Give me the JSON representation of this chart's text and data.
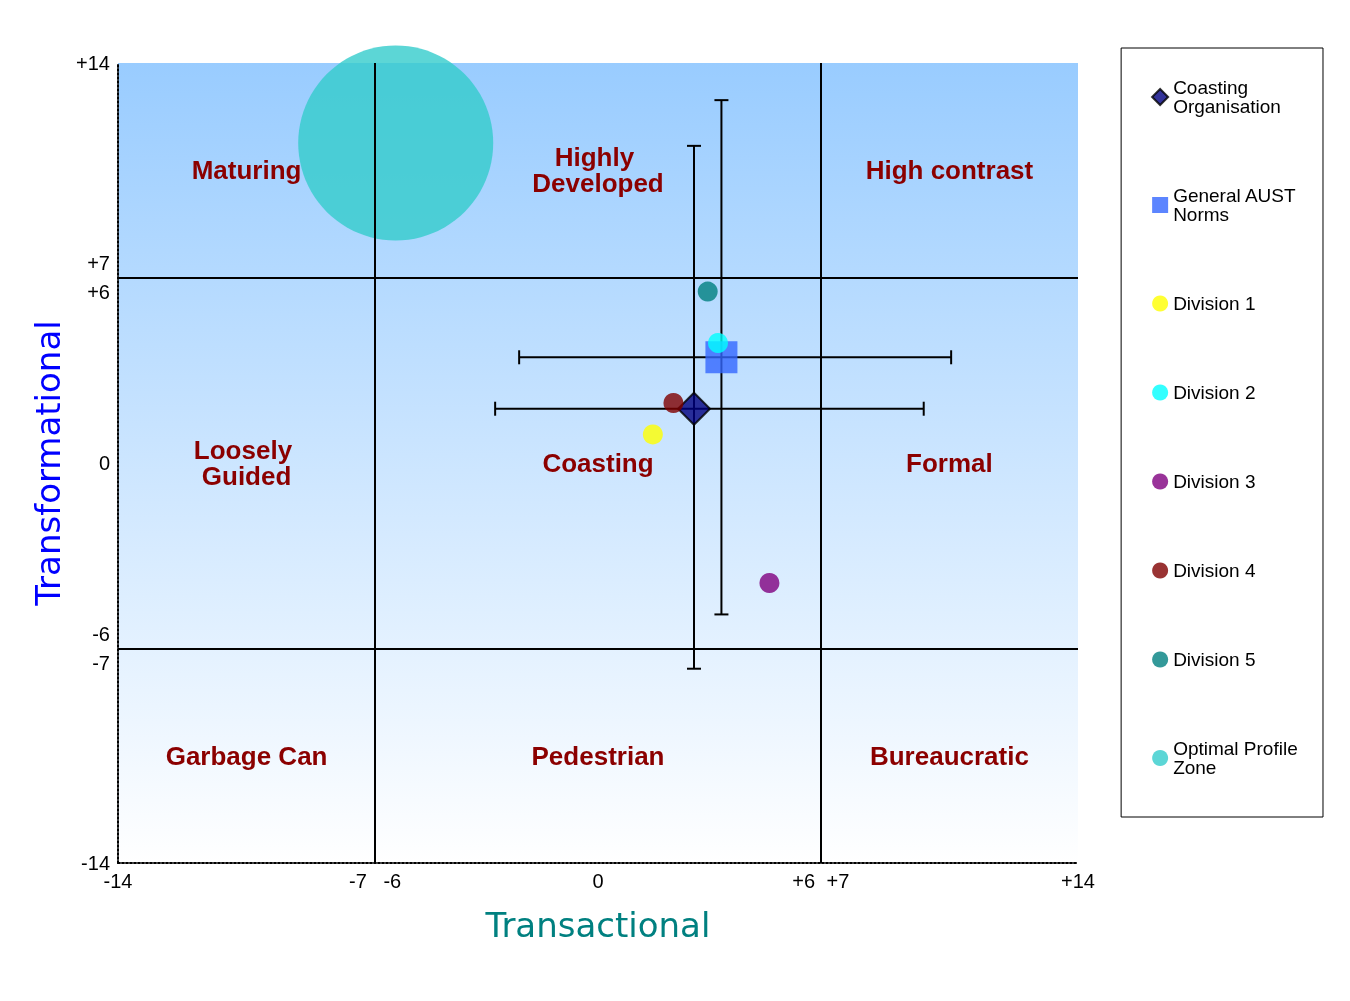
{
  "chart_data": {
    "type": "scatter",
    "xlabel": "Transactional",
    "ylabel": "Transformational",
    "xlim": [
      -14,
      14
    ],
    "ylim": [
      -14,
      14
    ],
    "xticks": [
      -14,
      -7,
      -6,
      0,
      {
        "value": 6,
        "label": "+6"
      },
      {
        "value": 7,
        "label": "+7"
      },
      {
        "value": 14,
        "label": "+14"
      }
    ],
    "yticks": [
      -14,
      -7,
      -6,
      0,
      {
        "value": 6,
        "label": "+6"
      },
      {
        "value": 7,
        "label": "+7"
      },
      {
        "value": 14,
        "label": "+14"
      }
    ],
    "grid": false,
    "legend": "right",
    "ref_lines": [
      {
        "axis": "x",
        "value": -6.5,
        "color": "#000000"
      },
      {
        "axis": "x",
        "value": 6.5,
        "color": "#000000"
      },
      {
        "axis": "y",
        "value": 6.5,
        "color": "#000000"
      },
      {
        "axis": "y",
        "value": -6.5,
        "color": "#000000"
      }
    ],
    "annotations": [
      "Maturing",
      "Highly Developed",
      "High contrast",
      "Loosely Guided",
      "Coasting",
      "Formal",
      "Garbage Can",
      "Pedestrian",
      "Bureaucratic"
    ],
    "series": [
      {
        "name": "Coasting Organisation",
        "color": "#000080",
        "marker": "diamond",
        "x": [
          2.8
        ],
        "values": [
          1.9
        ],
        "errors": [
          [
            -7.2,
            11.1
          ]
        ],
        "xerrors": [
          [
            -3.0,
            9.5
          ]
        ]
      },
      {
        "name": "General AUST Norms",
        "color": "#3366ff",
        "marker": "square",
        "x": [
          3.6
        ],
        "values": [
          3.7
        ],
        "errors": [
          [
            -5.3,
            12.7
          ]
        ],
        "xerrors": [
          [
            -2.3,
            10.3
          ]
        ]
      },
      {
        "name": "Division 1",
        "color": "#ffff00",
        "marker": "circle",
        "x": [
          1.6
        ],
        "values": [
          1.0
        ]
      },
      {
        "name": "Division 2",
        "color": "#00ffff",
        "marker": "circle",
        "x": [
          3.5
        ],
        "values": [
          4.2
        ]
      },
      {
        "name": "Division 3",
        "color": "#800080",
        "marker": "circle",
        "x": [
          5.0
        ],
        "values": [
          -4.2
        ]
      },
      {
        "name": "Division 4",
        "color": "#800000",
        "marker": "circle",
        "x": [
          2.2
        ],
        "values": [
          2.1
        ]
      },
      {
        "name": "Division 5",
        "color": "#008080",
        "marker": "circle",
        "x": [
          3.2
        ],
        "values": [
          6.0
        ]
      },
      {
        "name": "Optimal Profile Zone",
        "type": "bubble",
        "color": "#33cccc",
        "marker": "circle",
        "x": [
          -5.9
        ],
        "values": [
          11.2
        ],
        "sizes": [
          1
        ]
      }
    ]
  }
}
